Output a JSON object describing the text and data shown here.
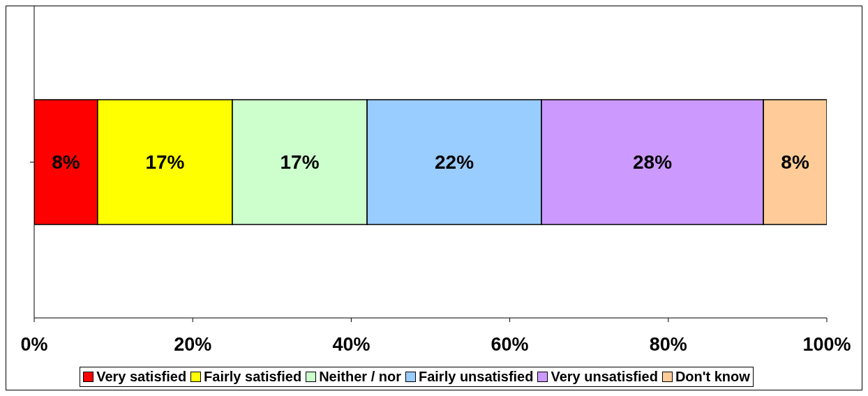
{
  "chart_data": {
    "type": "bar",
    "orientation": "horizontal",
    "stacked": true,
    "categories": [
      null
    ],
    "series": [
      {
        "name": "Very satisfied",
        "color": "#ff0000",
        "values": [
          8
        ],
        "value_labels": [
          "8%"
        ]
      },
      {
        "name": "Fairly satisfied",
        "color": "#ffff00",
        "values": [
          17
        ],
        "value_labels": [
          "17%"
        ]
      },
      {
        "name": "Neither / nor",
        "color": "#ccffcc",
        "values": [
          17
        ],
        "value_labels": [
          "17%"
        ]
      },
      {
        "name": "Fairly unsatisfied",
        "color": "#99ccff",
        "values": [
          22
        ],
        "value_labels": [
          "22%"
        ]
      },
      {
        "name": "Very unsatisfied",
        "color": "#cc99ff",
        "values": [
          28
        ],
        "value_labels": [
          "28%"
        ]
      },
      {
        "name": "Don't know",
        "color": "#ffcc99",
        "values": [
          8
        ],
        "value_labels": [
          "8%"
        ]
      }
    ],
    "xlim": [
      0,
      100
    ],
    "xticks": [
      {
        "value": 0,
        "label": "0%"
      },
      {
        "value": 20,
        "label": "20%"
      },
      {
        "value": 40,
        "label": "40%"
      },
      {
        "value": 60,
        "label": "60%"
      },
      {
        "value": 80,
        "label": "80%"
      },
      {
        "value": 100,
        "label": "100%"
      }
    ],
    "legend": "bottom"
  }
}
